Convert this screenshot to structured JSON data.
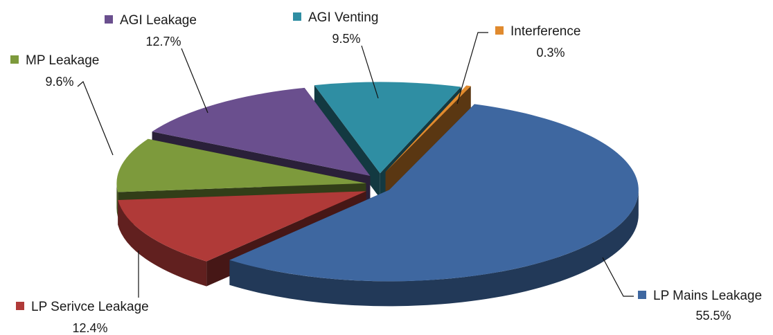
{
  "chart_data": {
    "type": "pie",
    "title": "",
    "slices": [
      {
        "name": "LP Mains Leakage",
        "value": 55.5,
        "label": "55.5%",
        "color": "#3e67a0"
      },
      {
        "name": "LP Serivce Leakage",
        "value": 12.4,
        "label": "12.4%",
        "color": "#b03a38"
      },
      {
        "name": "MP Leakage",
        "value": 9.6,
        "label": "9.6%",
        "color": "#7d9a3c"
      },
      {
        "name": "AGI Leakage",
        "value": 12.7,
        "label": "12.7%",
        "color": "#6a4f8e"
      },
      {
        "name": "AGI Venting",
        "value": 9.5,
        "label": "9.5%",
        "color": "#2f8ea3"
      },
      {
        "name": "Interference",
        "value": 0.3,
        "label": "0.3%",
        "color": "#e08a2e"
      }
    ],
    "exploded": true,
    "three_d": true,
    "legend": "data-labels"
  }
}
